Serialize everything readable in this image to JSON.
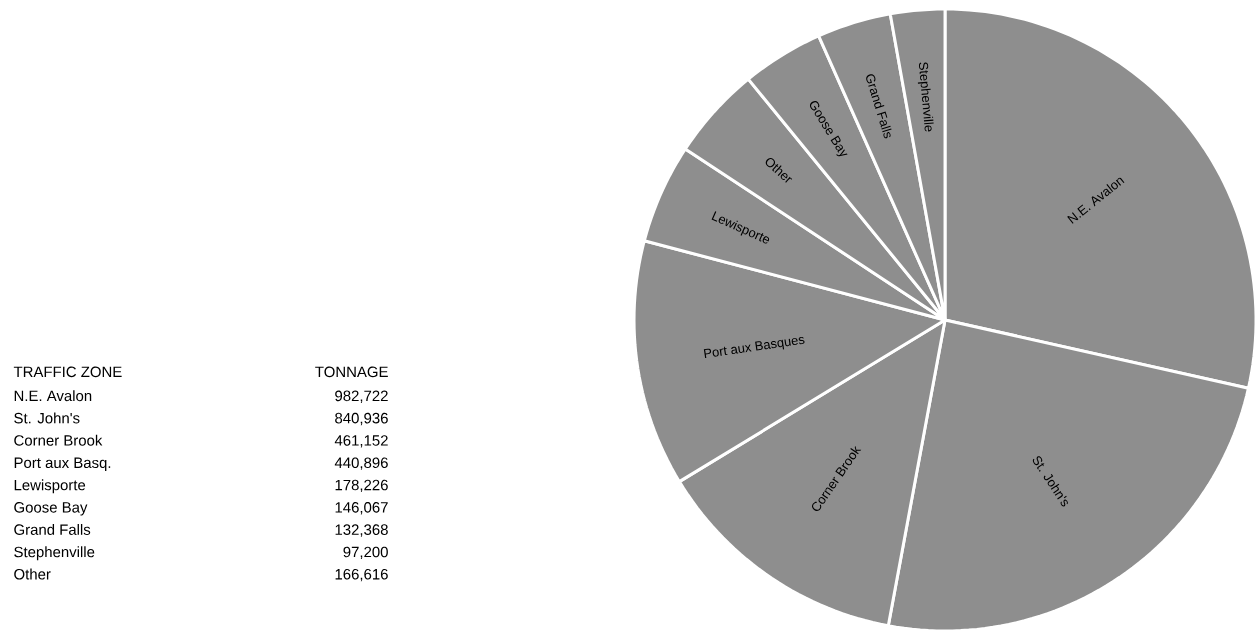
{
  "chart_data": [
    {
      "type": "other",
      "annotations": [
        "TRAFFIC ZONE",
        "TONNAGE",
        "N.E. Avalon",
        "982,722",
        "St. John's",
        "840,936",
        "Corner Brook",
        "461,152",
        "Port aux Basq.",
        "440,896",
        "Lewisporte",
        "178,226",
        "Goose Bay",
        "146,067",
        "Grand Falls",
        "132,368",
        "Stephenville",
        "97,200",
        "Other",
        "166,616"
      ]
    },
    {
      "type": "pie",
      "categories": [
        "N.E. Avalon",
        "St. John's",
        "Corner Brook",
        "Port aux Basques",
        "Lewisporte",
        "Other",
        "Goose Bay",
        "Grand Falls",
        "Stephenville"
      ],
      "values": [
        28.52,
        24.4,
        13.38,
        12.8,
        5.17,
        4.83,
        4.24,
        3.84,
        2.82
      ],
      "colors": [
        "#8e8e8e",
        "#8e8e8e",
        "#8e8e8e",
        "#8e8e8e",
        "#8e8e8e",
        "#8e8e8e",
        "#8e8e8e",
        "#8e8e8e",
        "#8e8e8e"
      ]
    }
  ]
}
